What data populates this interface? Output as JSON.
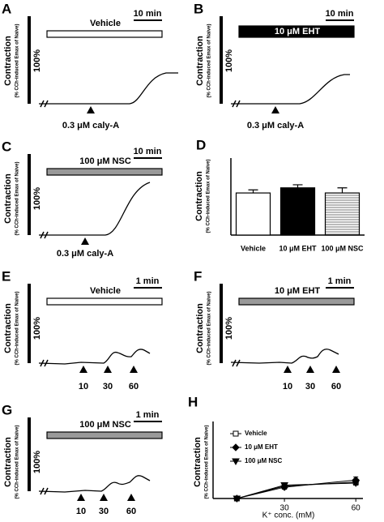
{
  "chart_data": [
    {
      "type": "trace",
      "label": "A",
      "drug_label": "Vehicle",
      "scale_label": "10 min",
      "amplitude_label": "100%",
      "y_label": "Contraction",
      "y_sublabel": "(% CCh-induced Emax of Naive)",
      "stimuli": [
        "0.3 μM caly-A"
      ]
    },
    {
      "type": "trace",
      "label": "B",
      "drug_label": "10 μM EHT",
      "scale_label": "10 min",
      "amplitude_label": "100%",
      "y_label": "Contraction",
      "y_sublabel": "(% CCh-induced Emax of Naive)",
      "stimuli": [
        "0.3 μM caly-A"
      ]
    },
    {
      "type": "trace",
      "label": "C",
      "drug_label": "100 μM NSC",
      "scale_label": "10 min",
      "amplitude_label": "100%",
      "y_label": "Contraction",
      "y_sublabel": "(% CCh-induced Emax of Naive)",
      "stimuli": [
        "0.3 μM caly-A"
      ]
    },
    {
      "type": "bar",
      "label": "D",
      "y_label": "Contraction",
      "y_sublabel": "(% CCh-induced Emax of Naive)",
      "categories": [
        "Vehicle",
        "10 μM EHT",
        "100 μM NSC"
      ],
      "values": [
        41,
        46,
        41
      ],
      "errors": [
        3,
        3,
        5
      ],
      "colors": [
        "#ffffff",
        "#000000",
        "#cfcfcf"
      ],
      "ylim": [
        0,
        75
      ]
    },
    {
      "type": "trace",
      "label": "E",
      "drug_label": "Vehicle",
      "scale_label": "1 min",
      "amplitude_label": "100%",
      "y_label": "Contraction",
      "y_sublabel": "(% CCh-induced Emax of Naive)",
      "stimuli": [
        "10",
        "30",
        "60"
      ]
    },
    {
      "type": "trace",
      "label": "F",
      "drug_label": "10 μM EHT",
      "scale_label": "1 min",
      "amplitude_label": "100%",
      "y_label": "Contraction",
      "y_sublabel": "(% CCh-induced Emax of Naive)",
      "stimuli": [
        "10",
        "30",
        "60"
      ]
    },
    {
      "type": "trace",
      "label": "G",
      "drug_label": "100 μM NSC",
      "scale_label": "1 min",
      "amplitude_label": "100%",
      "y_label": "Contraction",
      "y_sublabel": "(% CCh-induced Emax of Naive)",
      "stimuli": [
        "10",
        "30",
        "60"
      ]
    },
    {
      "type": "line",
      "label": "H",
      "y_label": "Contraction",
      "y_sublabel": "(% CCh-induced Emax of Naive)",
      "x_label": "K⁺ conc. (mM)",
      "x": [
        10,
        30,
        60
      ],
      "xlim": [
        0,
        63
      ],
      "xticks": [
        30,
        60
      ],
      "ylim": [
        0,
        75
      ],
      "series": [
        {
          "name": "Vehicle",
          "marker": "square",
          "values": [
            0,
            12,
            16
          ],
          "errors": [
            0,
            2,
            3
          ]
        },
        {
          "name": "10 μM EHT",
          "marker": "diamond",
          "values": [
            0,
            11,
            18
          ],
          "errors": [
            0,
            2,
            3
          ]
        },
        {
          "name": "100 μM NSC",
          "marker": "triangle",
          "values": [
            0,
            13,
            15
          ],
          "errors": [
            0,
            2,
            2
          ]
        }
      ]
    }
  ]
}
